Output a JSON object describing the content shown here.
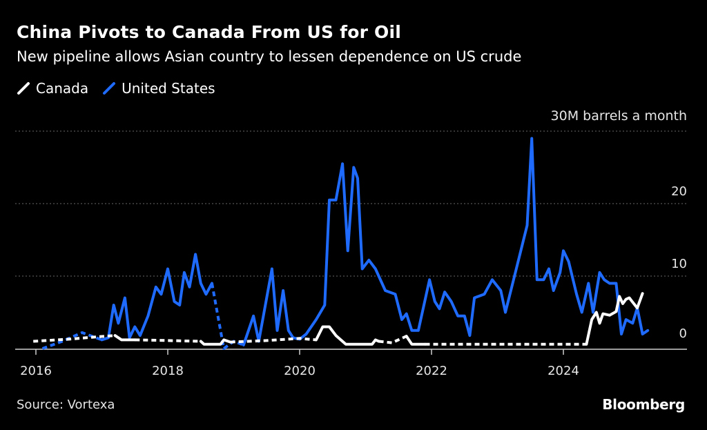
{
  "header": {
    "title": "China Pivots to Canada From US for Oil",
    "subtitle": "New pipeline allows Asian country to lessen dependence on US crude"
  },
  "legend": {
    "items": [
      {
        "label": "Canada",
        "color": "#ffffff"
      },
      {
        "label": "United States",
        "color": "#1f6bff"
      }
    ]
  },
  "footer": {
    "source": "Source: Vortexa",
    "brand": "Bloomberg"
  },
  "chart_data": {
    "type": "line",
    "y_unit_label": "30M barrels a month",
    "ylim": [
      0,
      30
    ],
    "y_ticks": [
      {
        "value": 0,
        "label": "0"
      },
      {
        "value": 10,
        "label": "10"
      },
      {
        "value": 20,
        "label": "20"
      }
    ],
    "xlim": [
      2016.0,
      2025.9
    ],
    "x_ticks": [
      {
        "value": 2016,
        "label": "2016"
      },
      {
        "value": 2018,
        "label": "2018"
      },
      {
        "value": 2020,
        "label": "2020"
      },
      {
        "value": 2022,
        "label": "2022"
      },
      {
        "value": 2024,
        "label": "2024"
      }
    ],
    "grid": true,
    "legend_position": "top-left",
    "series": [
      {
        "name": "Canada",
        "color": "#ffffff",
        "style_note": "dashed where data sparse",
        "segments": [
          {
            "dashed": true,
            "points": [
              [
                2015.96,
                1.0
              ],
              [
                2016.5,
                1.3
              ],
              [
                2016.9,
                1.6
              ],
              [
                2017.2,
                1.8
              ]
            ]
          },
          {
            "dashed": false,
            "points": [
              [
                2017.2,
                1.8
              ],
              [
                2017.3,
                1.2
              ],
              [
                2017.5,
                1.2
              ]
            ]
          },
          {
            "dashed": true,
            "points": [
              [
                2017.5,
                1.2
              ],
              [
                2018.0,
                1.1
              ],
              [
                2018.5,
                1.0
              ]
            ]
          },
          {
            "dashed": false,
            "points": [
              [
                2018.5,
                1.0
              ],
              [
                2018.55,
                0.6
              ],
              [
                2018.8,
                0.6
              ],
              [
                2018.85,
                1.2
              ],
              [
                2018.95,
                0.9
              ]
            ]
          },
          {
            "dashed": true,
            "points": [
              [
                2018.95,
                0.9
              ],
              [
                2019.5,
                1.1
              ],
              [
                2020.0,
                1.4
              ],
              [
                2020.25,
                1.2
              ]
            ]
          },
          {
            "dashed": false,
            "points": [
              [
                2020.25,
                1.2
              ],
              [
                2020.35,
                3.0
              ],
              [
                2020.45,
                3.0
              ],
              [
                2020.55,
                1.8
              ],
              [
                2020.7,
                0.6
              ],
              [
                2021.0,
                0.6
              ],
              [
                2021.1,
                0.6
              ],
              [
                2021.15,
                1.2
              ],
              [
                2021.2,
                1.0
              ]
            ]
          },
          {
            "dashed": true,
            "points": [
              [
                2021.2,
                1.0
              ],
              [
                2021.4,
                0.8
              ],
              [
                2021.62,
                1.7
              ]
            ]
          },
          {
            "dashed": false,
            "points": [
              [
                2021.62,
                1.7
              ],
              [
                2021.7,
                0.6
              ],
              [
                2021.9,
                0.6
              ]
            ]
          },
          {
            "dashed": true,
            "points": [
              [
                2021.9,
                0.6
              ],
              [
                2023.0,
                0.6
              ],
              [
                2024.35,
                0.6
              ]
            ]
          },
          {
            "dashed": false,
            "points": [
              [
                2024.35,
                0.6
              ],
              [
                2024.43,
                4.0
              ],
              [
                2024.5,
                5.0
              ],
              [
                2024.55,
                3.5
              ],
              [
                2024.6,
                4.8
              ],
              [
                2024.7,
                4.6
              ],
              [
                2024.8,
                5.1
              ],
              [
                2024.85,
                7.2
              ],
              [
                2024.9,
                6.2
              ],
              [
                2024.95,
                6.8
              ],
              [
                2025.0,
                7.0
              ],
              [
                2025.05,
                6.4
              ],
              [
                2025.12,
                5.6
              ],
              [
                2025.2,
                7.6
              ]
            ]
          }
        ]
      },
      {
        "name": "United States",
        "color": "#1f6bff",
        "style_note": "dashed where data sparse",
        "segments": [
          {
            "dashed": true,
            "points": [
              [
                2016.1,
                0.0
              ],
              [
                2016.4,
                1.0
              ],
              [
                2016.7,
                2.2
              ],
              [
                2017.0,
                1.2
              ]
            ]
          },
          {
            "dashed": false,
            "points": [
              [
                2017.0,
                1.2
              ],
              [
                2017.1,
                1.5
              ],
              [
                2017.18,
                6.0
              ],
              [
                2017.25,
                3.5
              ],
              [
                2017.35,
                7.0
              ],
              [
                2017.42,
                1.5
              ],
              [
                2017.5,
                3.0
              ],
              [
                2017.58,
                1.8
              ],
              [
                2017.7,
                4.5
              ],
              [
                2017.82,
                8.5
              ],
              [
                2017.9,
                7.5
              ],
              [
                2018.0,
                11.0
              ],
              [
                2018.1,
                6.5
              ],
              [
                2018.18,
                6.0
              ],
              [
                2018.25,
                10.5
              ],
              [
                2018.33,
                8.5
              ],
              [
                2018.42,
                13.0
              ],
              [
                2018.5,
                9.0
              ],
              [
                2018.58,
                7.5
              ],
              [
                2018.67,
                9.0
              ]
            ]
          },
          {
            "dashed": true,
            "points": [
              [
                2018.67,
                9.0
              ],
              [
                2018.75,
                5.0
              ],
              [
                2018.85,
                0.0
              ],
              [
                2019.0,
                1.0
              ],
              [
                2019.15,
                0.5
              ]
            ]
          },
          {
            "dashed": false,
            "points": [
              [
                2019.15,
                0.5
              ],
              [
                2019.3,
                4.5
              ],
              [
                2019.38,
                1.0
              ],
              [
                2019.58,
                11.0
              ],
              [
                2019.66,
                2.5
              ],
              [
                2019.75,
                8.0
              ],
              [
                2019.83,
                2.5
              ],
              [
                2019.9,
                1.5
              ],
              [
                2020.0,
                1.3
              ],
              [
                2020.1,
                2.0
              ],
              [
                2020.25,
                4.0
              ],
              [
                2020.38,
                6.0
              ],
              [
                2020.45,
                20.5
              ],
              [
                2020.5,
                20.5
              ],
              [
                2020.55,
                20.5
              ],
              [
                2020.65,
                25.5
              ],
              [
                2020.73,
                13.5
              ],
              [
                2020.82,
                25.0
              ],
              [
                2020.88,
                23.5
              ],
              [
                2020.95,
                11.0
              ],
              [
                2021.05,
                12.2
              ],
              [
                2021.15,
                11.0
              ],
              [
                2021.3,
                8.0
              ],
              [
                2021.45,
                7.5
              ],
              [
                2021.55,
                4.0
              ],
              [
                2021.62,
                4.8
              ],
              [
                2021.7,
                2.5
              ],
              [
                2021.8,
                2.5
              ],
              [
                2021.97,
                9.5
              ],
              [
                2022.05,
                6.5
              ],
              [
                2022.12,
                5.5
              ],
              [
                2022.2,
                7.8
              ],
              [
                2022.3,
                6.5
              ],
              [
                2022.4,
                4.5
              ],
              [
                2022.5,
                4.5
              ],
              [
                2022.58,
                1.8
              ],
              [
                2022.65,
                7.0
              ],
              [
                2022.8,
                7.5
              ],
              [
                2022.92,
                9.5
              ],
              [
                2023.05,
                8.0
              ],
              [
                2023.12,
                5.0
              ],
              [
                2023.3,
                11.5
              ],
              [
                2023.45,
                17.0
              ],
              [
                2023.52,
                29.0
              ],
              [
                2023.6,
                9.5
              ],
              [
                2023.7,
                9.5
              ],
              [
                2023.78,
                11.0
              ],
              [
                2023.85,
                8.0
              ],
              [
                2023.95,
                10.5
              ],
              [
                2024.0,
                13.5
              ],
              [
                2024.08,
                12.0
              ],
              [
                2024.2,
                7.5
              ],
              [
                2024.28,
                5.0
              ],
              [
                2024.38,
                9.0
              ],
              [
                2024.45,
                5.0
              ],
              [
                2024.55,
                10.5
              ],
              [
                2024.62,
                9.5
              ],
              [
                2024.7,
                9.0
              ],
              [
                2024.8,
                9.0
              ],
              [
                2024.88,
                2.0
              ],
              [
                2024.95,
                4.0
              ],
              [
                2025.05,
                3.5
              ],
              [
                2025.12,
                5.6
              ],
              [
                2025.2,
                2.0
              ],
              [
                2025.28,
                2.5
              ]
            ]
          }
        ]
      }
    ]
  }
}
